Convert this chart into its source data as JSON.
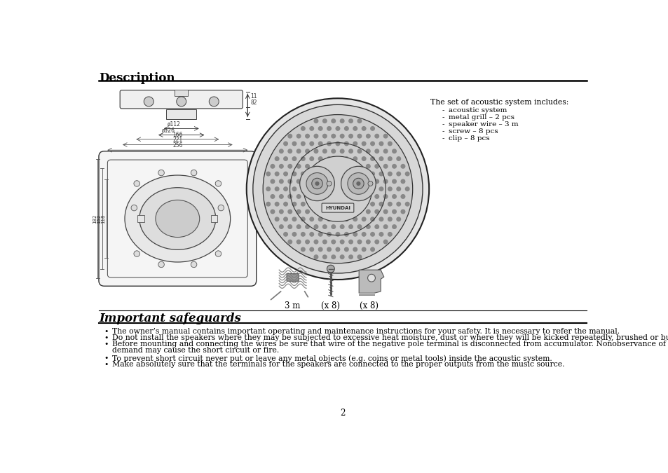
{
  "title_description": "Description",
  "title_safeguards": "Important safeguards",
  "includes_header": "The set of acoustic system includes:",
  "includes_items": [
    "acoustic system",
    "metal grill – 2 pcs",
    "speaker wire – 3 m",
    "screw – 8 pcs",
    "clip – 8 pcs"
  ],
  "bullet_line1": "The owner’s manual contains important operating and maintenance instructions for your safety. It is necessary to refer the manual.",
  "bullet_line2": "Do not install the speakers where they may be subjected to excessive heat moisture, dust or where they will be kicked repeatedly, brushed or bumped.",
  "bullet_line3a": "Before mounting and connecting the wires be sure that wire of the negative pole terminal is disconnected from accumulator. Nonobservance of this",
  "bullet_line3b": "demand may cause the short circuit or fire.",
  "bullet_line4": "To prevent short circuit never put or leave any metal objects (e.g. coins or metal tools) inside the acoustic system.",
  "bullet_line5": "Make absolutely sure that the terminals for the speakers are connected to the proper outputs from the music source.",
  "label_3m": "3 m",
  "label_x8a": "(x 8)",
  "label_x8b": "(x 8)",
  "page_number": "2",
  "bg_color": "#ffffff",
  "text_color": "#000000",
  "line_color": "#000000",
  "title_fontsize": 12,
  "body_fontsize": 7.8,
  "small_fontsize": 7.5,
  "inc_header_fontsize": 7.8
}
